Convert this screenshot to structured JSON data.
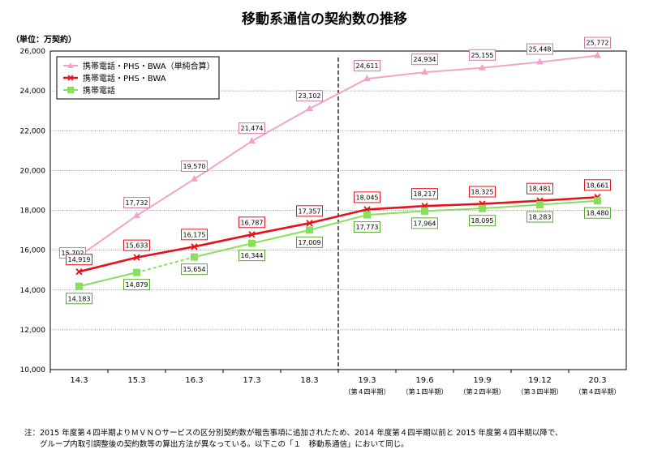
{
  "chart_data": {
    "type": "line",
    "title": "移動系通信の契約数の推移",
    "unit_label": "（単位：万契約）",
    "categories": [
      "14.3",
      "15.3",
      "16.3",
      "17.3",
      "18.3",
      "19.3",
      "19.6",
      "19.9",
      "19.12",
      "20.3"
    ],
    "category_sublabels": [
      "",
      "",
      "",
      "",
      "",
      "（第４四半期）",
      "（第１四半期）",
      "（第２四半期）",
      "（第３四半期）",
      "（第４四半期）"
    ],
    "ylim": [
      10000,
      26000
    ],
    "yticks": [
      10000,
      12000,
      14000,
      16000,
      18000,
      20000,
      22000,
      24000,
      26000
    ],
    "ytick_labels": [
      "10,000",
      "12,000",
      "14,000",
      "16,000",
      "18,000",
      "20,000",
      "22,000",
      "24,000",
      "26,000"
    ],
    "grid": "horizontal",
    "legend_position": "top-left",
    "divider_after_category": "18.3",
    "series": [
      {
        "name": "携帯電話・PHS・BWA（単純合算）",
        "color": "#f4a3c8",
        "marker": "triangle",
        "values": [
          15702,
          17732,
          19570,
          21474,
          23102,
          24611,
          24934,
          25155,
          25448,
          25772
        ],
        "labels": [
          "15,702",
          "17,732",
          "19,570",
          "21,474",
          "23,102",
          "24,611",
          "24,934",
          "25,155",
          "25,448",
          "25,772"
        ]
      },
      {
        "name": "携帯電話・PHS・BWA",
        "color": "#e8111b",
        "marker": "x",
        "values": [
          14919,
          15633,
          16175,
          16787,
          17357,
          18045,
          18217,
          18325,
          18481,
          18661
        ],
        "labels": [
          "14,919",
          "15,633",
          "16,175",
          "16,787",
          "17,357",
          "18,045",
          "18,217",
          "18,325",
          "18,481",
          "18,661"
        ]
      },
      {
        "name": "携帯電話",
        "color": "#86e05a",
        "marker": "square",
        "values": [
          14183,
          14879,
          15654,
          16344,
          17009,
          17773,
          17964,
          18095,
          18283,
          18480
        ],
        "labels": [
          "14,183",
          "14,879",
          "15,654",
          "16,344",
          "17,009",
          "17,773",
          "17,964",
          "18,095",
          "18,283",
          "18,480"
        ]
      }
    ]
  },
  "footnote": "注：2015 年度第４四半期よりＭＶＮＯサービスの区分別契約数が報告事項に追加されたため、2014 年度第４四半期以前と 2015 年度第４四半期以降で、\n　　グループ内取引調整後の契約数等の算出方法が異なっている。以下この「１　移動系通信」において同じ。"
}
